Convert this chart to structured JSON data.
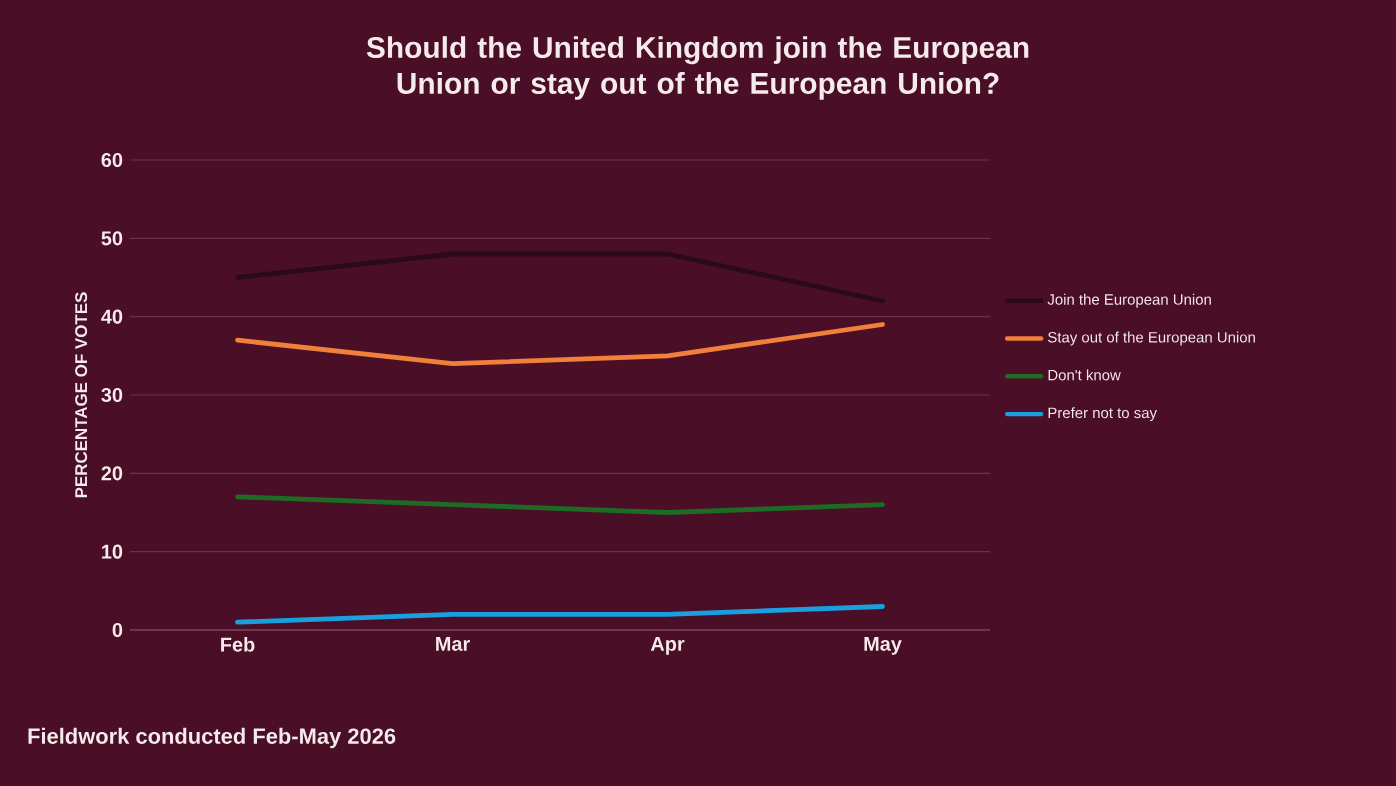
{
  "chart_data": {
    "type": "line",
    "title": "Should the United Kingdom join the European Union or stay out of the European Union?",
    "ylabel": "PERCENTAGE OF VOTES",
    "categories": [
      "Feb",
      "Mar",
      "Apr",
      "May"
    ],
    "series": [
      {
        "name": "Join the European Union",
        "color": "#2a0a16",
        "values": [
          45,
          48,
          48,
          42
        ]
      },
      {
        "name": "Stay out of the European Union",
        "color": "#f0803a",
        "values": [
          37,
          34,
          35,
          39
        ]
      },
      {
        "name": "Don't know",
        "color": "#1e6b25",
        "values": [
          17,
          16,
          15,
          16
        ]
      },
      {
        "name": "Prefer not to say",
        "color": "#1aa0e0",
        "values": [
          1,
          2,
          2,
          3
        ]
      }
    ],
    "ylim": [
      0,
      60
    ],
    "yticks": [
      0,
      10,
      20,
      30,
      40,
      50,
      60
    ],
    "grid": "y",
    "legend": "right",
    "marker": "none",
    "line_style": "solid",
    "annotations": [
      "Fieldwork conducted Feb-May 2026"
    ]
  }
}
